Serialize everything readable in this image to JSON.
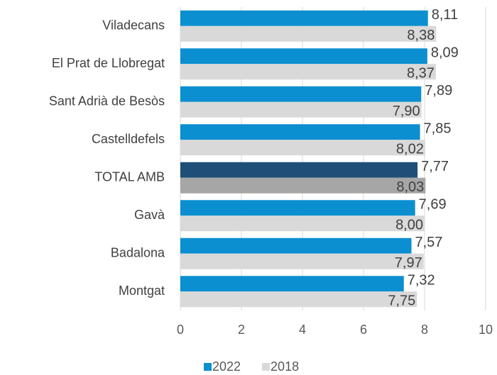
{
  "chart_data": {
    "type": "bar",
    "orientation": "horizontal",
    "categories": [
      "Viladecans",
      "El Prat de Llobregat",
      "Sant Adrià de Besòs",
      "Castelldefels",
      "TOTAL AMB",
      "Gavà",
      "Badalona",
      "Montgat"
    ],
    "series": [
      {
        "name": "2022",
        "color": "#0b8fd0",
        "colors": [
          "#0b8fd0",
          "#0b8fd0",
          "#0b8fd0",
          "#0b8fd0",
          "#1f4e79",
          "#0b8fd0",
          "#0b8fd0",
          "#0b8fd0"
        ],
        "values": [
          8.11,
          8.09,
          7.89,
          7.85,
          7.77,
          7.69,
          7.57,
          7.32
        ],
        "value_labels": [
          "8,11",
          "8,09",
          "7,89",
          "7,85",
          "7,77",
          "7,69",
          "7,57",
          "7,32"
        ]
      },
      {
        "name": "2018",
        "color": "#d9d9d9",
        "colors": [
          "#d9d9d9",
          "#d9d9d9",
          "#d9d9d9",
          "#d9d9d9",
          "#a6a6a6",
          "#d9d9d9",
          "#d9d9d9",
          "#d9d9d9"
        ],
        "values": [
          8.38,
          8.37,
          7.9,
          8.02,
          8.03,
          8.0,
          7.97,
          7.75
        ],
        "value_labels": [
          "8,38",
          "8,37",
          "7,90",
          "8,02",
          "8,03",
          "8,00",
          "7,97",
          "7,75"
        ]
      }
    ],
    "xlim": [
      0,
      10
    ],
    "xticks": [
      0,
      2,
      4,
      6,
      8,
      10
    ],
    "grid": true,
    "legend": "bottom"
  }
}
